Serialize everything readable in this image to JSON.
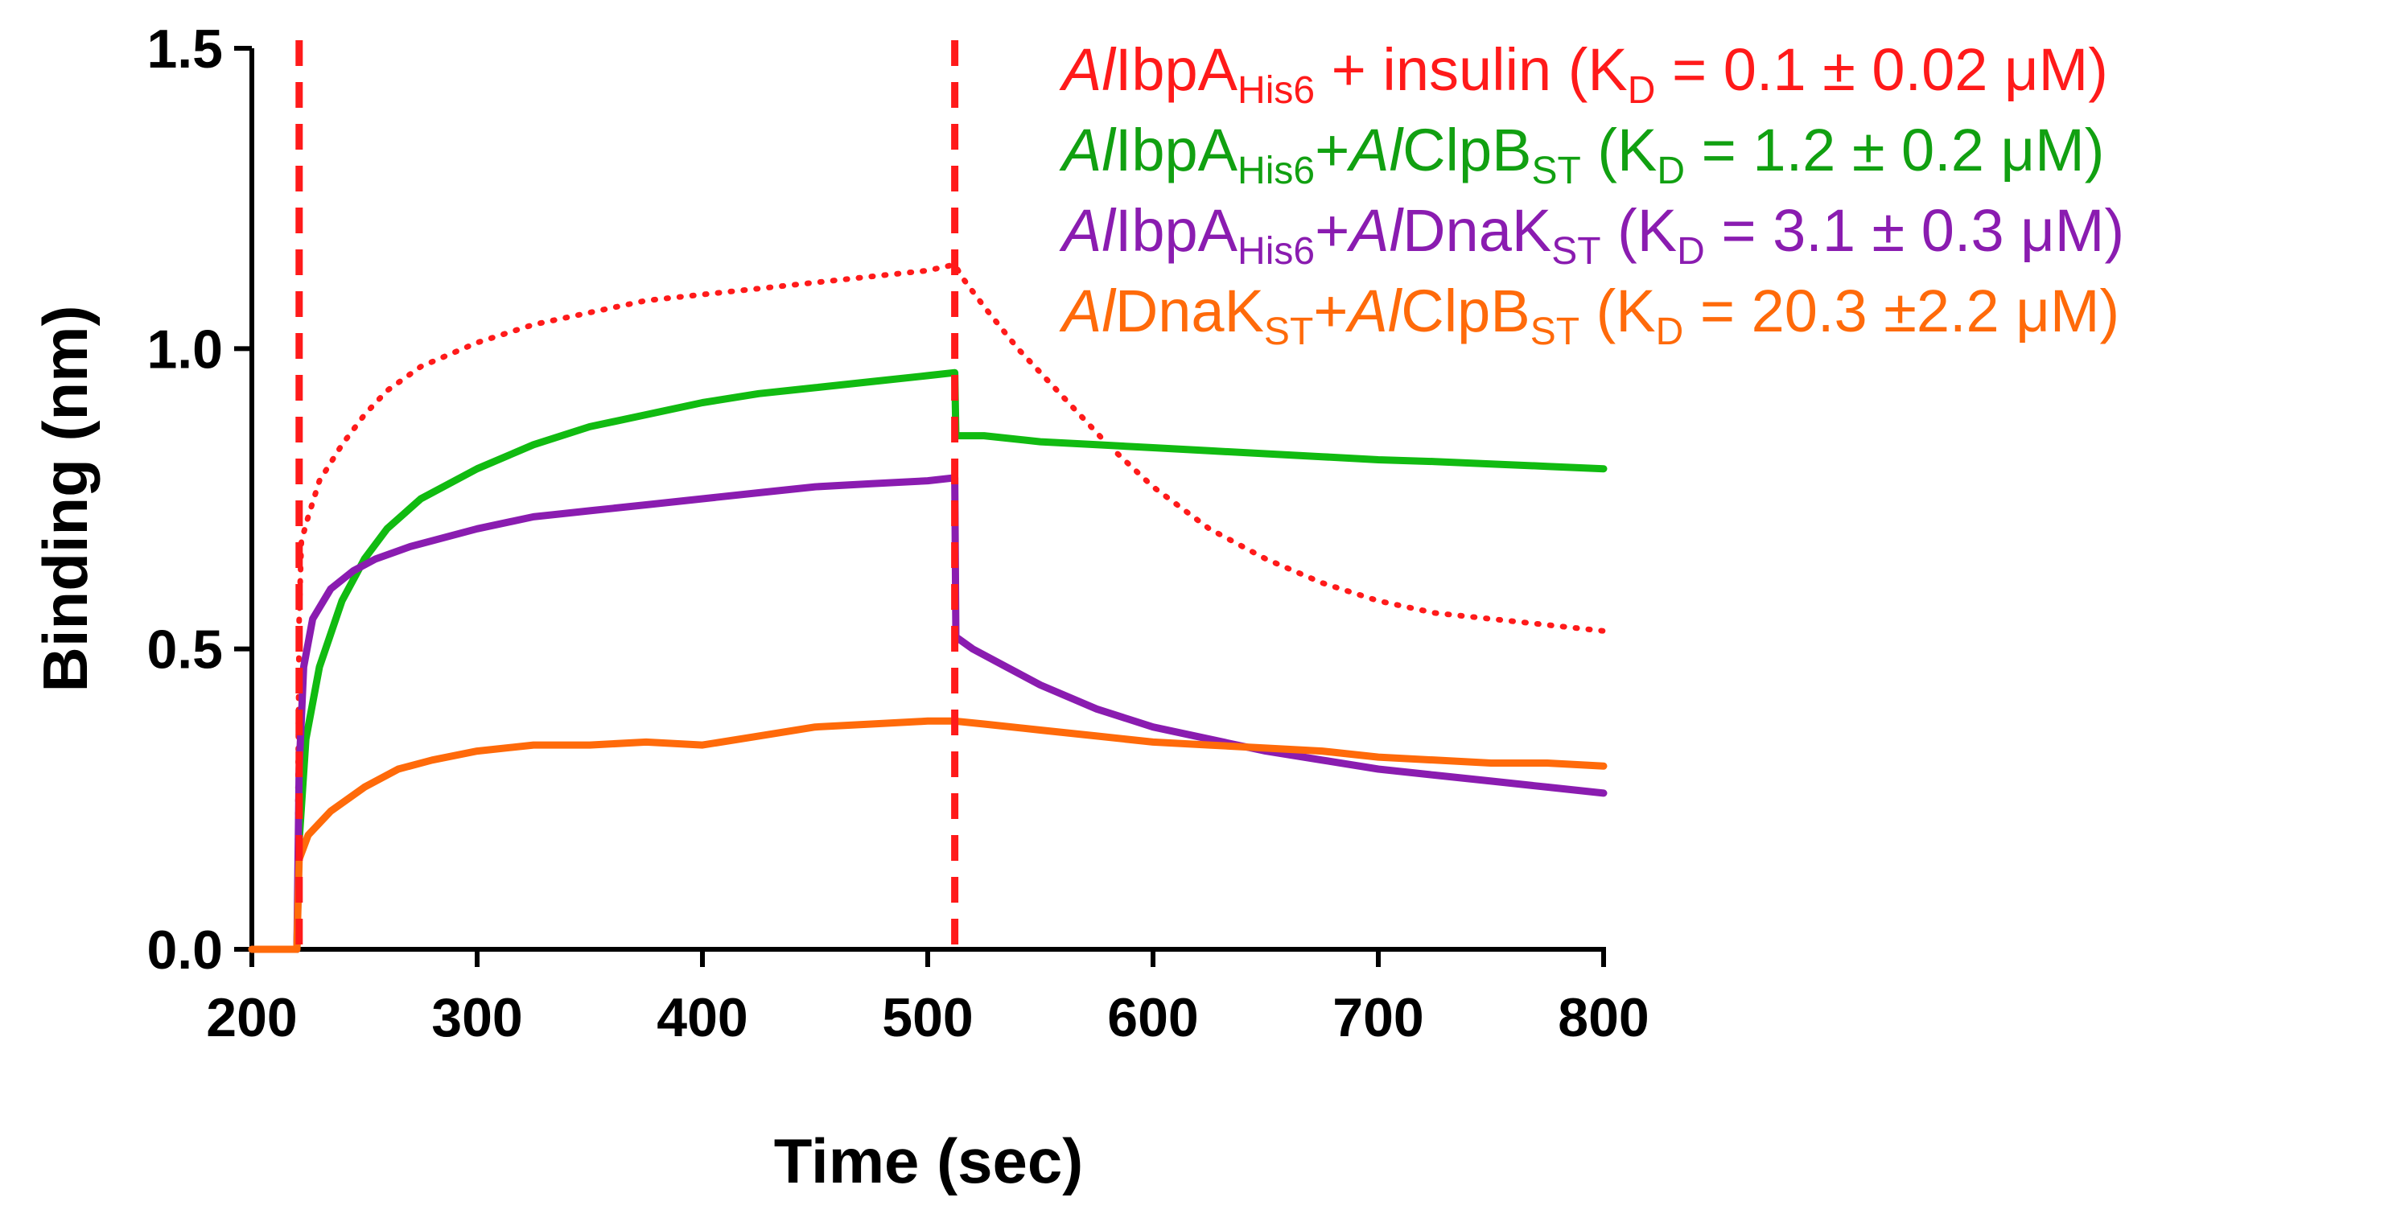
{
  "chart_data": {
    "type": "line",
    "xlabel": "Time (sec)",
    "ylabel": "Binding (nm)",
    "xlim": [
      200,
      800
    ],
    "ylim": [
      0.0,
      1.5
    ],
    "x_ticks": [
      200,
      300,
      400,
      500,
      600,
      700,
      800
    ],
    "x_tick_labels": [
      "200",
      "300",
      "400",
      "500",
      "600",
      "700",
      "800"
    ],
    "y_ticks": [
      0.0,
      0.5,
      1.0,
      1.5
    ],
    "y_tick_labels": [
      "0.0",
      "0.5",
      "1.0",
      "1.5"
    ],
    "grid": false,
    "legend_position": "top-right",
    "vertical_markers": [
      {
        "x": 221,
        "color": "#ff1a1a",
        "style": "dashed"
      },
      {
        "x": 512,
        "color": "#ff1a1a",
        "style": "dashed"
      }
    ],
    "series": [
      {
        "name": "AlIbpAHis6 + insulin",
        "color": "#ff1a1a",
        "style": "dotted",
        "legend": {
          "p1": "Al",
          "p2": "IbpA",
          "sub1": "His6",
          "p3": " + insulin (K",
          "subD": "D",
          "p4": " = 0.1 ± 0.02 μM)"
        },
        "x": [
          200,
          220,
          221,
          222,
          225,
          230,
          240,
          250,
          260,
          275,
          300,
          325,
          350,
          375,
          400,
          425,
          450,
          475,
          500,
          512,
          515,
          525,
          540,
          560,
          580,
          600,
          625,
          650,
          675,
          700,
          725,
          750,
          775,
          800
        ],
        "y": [
          0.0,
          0.0,
          0.55,
          0.68,
          0.72,
          0.78,
          0.84,
          0.89,
          0.93,
          0.97,
          1.01,
          1.04,
          1.06,
          1.08,
          1.09,
          1.1,
          1.11,
          1.12,
          1.13,
          1.14,
          1.12,
          1.07,
          1.0,
          0.92,
          0.84,
          0.77,
          0.7,
          0.65,
          0.61,
          0.58,
          0.56,
          0.55,
          0.54,
          0.53
        ]
      },
      {
        "name": "AlIbpAHis6 + AlClpBST",
        "color": "#11bb11",
        "style": "solid",
        "legend": {
          "p1": "Al",
          "p2": "IbpA",
          "sub1": "His6",
          "p3": "+",
          "p4": "Al",
          "p5": "ClpB",
          "sub2": "ST",
          "p6": " (K",
          "subD": "D",
          "p7": " = 1.2 ± 0.2 μM)"
        },
        "x": [
          200,
          220,
          221,
          224,
          230,
          240,
          250,
          260,
          275,
          300,
          325,
          350,
          375,
          400,
          425,
          450,
          475,
          500,
          512,
          512.5,
          525,
          550,
          575,
          600,
          625,
          650,
          675,
          700,
          725,
          750,
          775,
          800
        ],
        "y": [
          0.0,
          0.0,
          0.18,
          0.35,
          0.47,
          0.58,
          0.65,
          0.7,
          0.75,
          0.8,
          0.84,
          0.87,
          0.89,
          0.91,
          0.925,
          0.935,
          0.945,
          0.955,
          0.96,
          0.855,
          0.855,
          0.845,
          0.84,
          0.835,
          0.83,
          0.825,
          0.82,
          0.815,
          0.812,
          0.808,
          0.804,
          0.8
        ]
      },
      {
        "name": "AlIbpAHis6 + AlDnaKST",
        "color": "#8a1cb0",
        "style": "solid",
        "legend": {
          "p1": "Al",
          "p2": "IbpA",
          "sub1": "His6",
          "p3": "+",
          "p4": "Al",
          "p5": "DnaK",
          "sub2": "ST",
          "p6": " (K",
          "subD": "D",
          "p7": " = 3.1 ± 0.3 μM)"
        },
        "x": [
          200,
          220,
          221,
          223,
          227,
          235,
          245,
          255,
          270,
          300,
          325,
          350,
          375,
          400,
          425,
          450,
          475,
          500,
          512,
          512.5,
          520,
          535,
          550,
          575,
          600,
          625,
          650,
          675,
          700,
          725,
          750,
          775,
          800
        ],
        "y": [
          0.0,
          0.0,
          0.3,
          0.47,
          0.55,
          0.6,
          0.63,
          0.65,
          0.67,
          0.7,
          0.72,
          0.73,
          0.74,
          0.75,
          0.76,
          0.77,
          0.775,
          0.78,
          0.785,
          0.52,
          0.5,
          0.47,
          0.44,
          0.4,
          0.37,
          0.35,
          0.33,
          0.315,
          0.3,
          0.29,
          0.28,
          0.27,
          0.26
        ]
      },
      {
        "name": "AlDnaKST + AlClpBST",
        "color": "#ff6a0a",
        "style": "solid",
        "legend": {
          "p1": "Al",
          "p2": "DnaK",
          "sub1": "ST",
          "p3": "+",
          "p4": "Al",
          "p5": "ClpB",
          "sub2": "ST",
          "p6": " (K",
          "subD": "D",
          "p7": " = 20.3 ±2.2 μM)"
        },
        "x": [
          200,
          220,
          221,
          225,
          235,
          250,
          265,
          280,
          300,
          325,
          350,
          375,
          400,
          425,
          450,
          475,
          500,
          512,
          525,
          550,
          575,
          600,
          625,
          650,
          675,
          700,
          725,
          750,
          775,
          800
        ],
        "y": [
          0.0,
          0.0,
          0.15,
          0.19,
          0.23,
          0.27,
          0.3,
          0.315,
          0.33,
          0.34,
          0.34,
          0.345,
          0.34,
          0.355,
          0.37,
          0.375,
          0.38,
          0.38,
          0.375,
          0.365,
          0.355,
          0.345,
          0.34,
          0.335,
          0.33,
          0.32,
          0.315,
          0.31,
          0.31,
          0.305
        ]
      }
    ]
  }
}
